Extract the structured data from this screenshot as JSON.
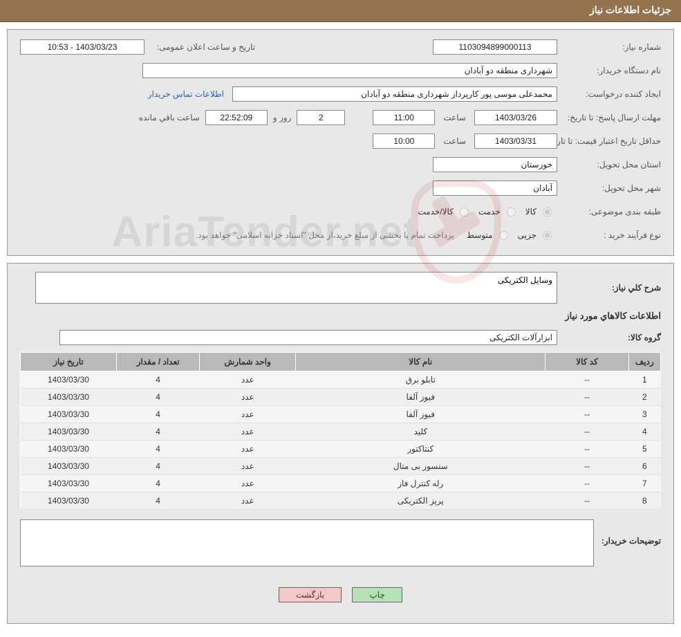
{
  "colors": {
    "banner_bg": "#93744f",
    "banner_text": "#ffffff",
    "panel_bg": "#e8e8e8",
    "panel_border": "#999999",
    "label_text": "#555555",
    "input_border": "#888888",
    "input_bg": "#ffffff",
    "link": "#2a63c0",
    "note": "#7a7a7a",
    "table_header_bg": "#b9b9b9",
    "table_row_bg": "#f5f5f5",
    "btn_green_bg": "#b6e0b6",
    "btn_pink_bg": "#f2c8c8",
    "watermark_red": "#c23030"
  },
  "banner": {
    "title": "جزئیات اطلاعات نیاز"
  },
  "need": {
    "number_label": "شماره نیاز:",
    "number": "1103094899000113",
    "date_label": "تاریخ و ساعت اعلان عمومی:",
    "date": "1403/03/23 - 10:53",
    "buyer_org_label": "نام دستگاه خریدار:",
    "buyer_org": "شهرداری منطقه دو آبادان",
    "requester_label": "ایجاد کننده درخواست:",
    "requester": "محمدعلی موسی پور کارپرداز شهرداری منطقه دو آبادان",
    "contact_link": "اطلاعات تماس خریدار",
    "deadline_label": "مهلت ارسال پاسخ: تا تاریخ:",
    "deadline_date": "1403/03/26",
    "hour_label": "ساعت",
    "deadline_time": "11:00",
    "days_remaining": "2",
    "day_and_label": "روز و",
    "time_remaining": "22:52:09",
    "time_remaining_suffix": "ساعت باقي مانده",
    "validity_label": "حداقل تاریخ اعتبار قیمت: تا تاریخ:",
    "validity_date": "1403/03/31",
    "validity_time": "10:00",
    "province_label": "استان محل تحویل:",
    "province": "خوزستان",
    "city_label": "شهر محل تحویل:",
    "city": "آبادان",
    "classification_label": "طبقه بندی موضوعی:",
    "opt_goods": "کالا",
    "opt_service": "خدمت",
    "opt_goods_service": "کالا/خدمت",
    "process_label": "نوع فرآیند خرید :",
    "opt_partial": "جزیی",
    "opt_medium": "متوسط",
    "process_note": "پرداخت تمام یا بخشی از مبلغ خرید،از محل \"اسناد خزانه اسلامی\" خواهد بود.",
    "desc_label": "شرح کلي نياز:",
    "desc": "وسایل الکتریکی",
    "goods_info_title": "اطلاعات کالاهاي مورد نياز",
    "goods_group_label": "گروه کالا:",
    "goods_group": "ابزارآلات الکتریکی",
    "buyer_notes_label": "توضیحات خریدار:",
    "buyer_notes": ""
  },
  "items_table": {
    "columns": {
      "row": "ردیف",
      "code": "کد کالا",
      "name": "نام کالا",
      "unit": "واحد شمارش",
      "qty": "تعداد / مقدار",
      "need_date": "تاریخ نیاز"
    },
    "col_widths": {
      "row": "5%",
      "code": "13%",
      "name": "39%",
      "unit": "15%",
      "qty": "13%",
      "need_date": "15%"
    },
    "rows": [
      {
        "row": "1",
        "code": "--",
        "name": "تابلو برق",
        "unit": "عدد",
        "qty": "4",
        "need_date": "1403/03/30"
      },
      {
        "row": "2",
        "code": "--",
        "name": "فیوز آلفا",
        "unit": "عدد",
        "qty": "4",
        "need_date": "1403/03/30"
      },
      {
        "row": "3",
        "code": "--",
        "name": "فیوز آلفا",
        "unit": "عدد",
        "qty": "4",
        "need_date": "1403/03/30"
      },
      {
        "row": "4",
        "code": "--",
        "name": "کلید",
        "unit": "عدد",
        "qty": "4",
        "need_date": "1403/03/30"
      },
      {
        "row": "5",
        "code": "--",
        "name": "کنتاکتور",
        "unit": "عدد",
        "qty": "4",
        "need_date": "1403/03/30"
      },
      {
        "row": "6",
        "code": "--",
        "name": "سنسور بی متال",
        "unit": "عدد",
        "qty": "4",
        "need_date": "1403/03/30"
      },
      {
        "row": "7",
        "code": "--",
        "name": "رله کنترل فاز",
        "unit": "عدد",
        "qty": "4",
        "need_date": "1403/03/30"
      },
      {
        "row": "8",
        "code": "--",
        "name": "پریز الکتریکی",
        "unit": "عدد",
        "qty": "4",
        "need_date": "1403/03/30"
      }
    ]
  },
  "footer": {
    "print": "چاپ",
    "back": "بازگشت"
  },
  "watermark": {
    "text": "AriaTender.net"
  }
}
